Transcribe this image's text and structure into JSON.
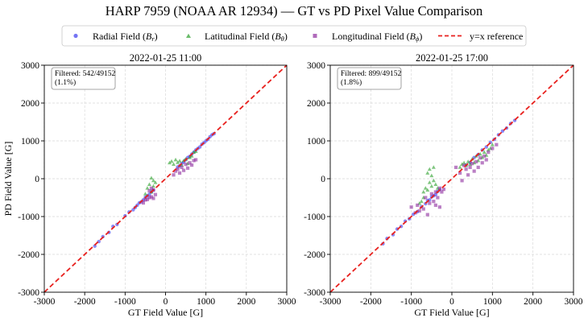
{
  "title": "HARP 7959 (NOAA AR 12934) — GT vs PD Pixel Value Comparison",
  "legend": {
    "placement": "top-center",
    "items": [
      {
        "label_main": "Radial Field (",
        "label_sym": "B",
        "label_sub": "r",
        "label_end": ")",
        "marker": "circle",
        "color": "#3b3bf0"
      },
      {
        "label_main": "Latitudinal Field (",
        "label_sym": "B",
        "label_sub": "θ",
        "label_end": ")",
        "marker": "triangle",
        "color": "#2ca02c"
      },
      {
        "label_main": "Longitudinal Field (",
        "label_sym": "B",
        "label_sub": "ϕ",
        "label_end": ")",
        "marker": "square",
        "color": "#8e2c9e"
      },
      {
        "label_main": "y=x reference",
        "label_sym": "",
        "label_sub": "",
        "label_end": "",
        "marker": "dashed-line",
        "color": "#e8211e"
      }
    ]
  },
  "chart_data": [
    {
      "type": "scatter",
      "title": "2022-01-25 11:00",
      "xlabel": "GT Field Value [G]",
      "ylabel": "PD Field Value [G]",
      "xlim": [
        -3000,
        3000
      ],
      "ylim": [
        -3000,
        3000
      ],
      "xticks": [
        "-3000",
        "-2000",
        "-1000",
        "0",
        "1000",
        "2000",
        "3000"
      ],
      "yticks": [
        "3000",
        "2000",
        "1000",
        "0",
        "-1000",
        "-2000",
        "-3000"
      ],
      "grid": true,
      "annotation": [
        "Filtered: 542/49152",
        "(1.1%)"
      ],
      "reference_line": {
        "name": "y=x reference",
        "points": [
          [
            -3000,
            -3000
          ],
          [
            3000,
            3000
          ]
        ]
      },
      "series": [
        {
          "name": "Radial Field (Br)",
          "marker": "circle",
          "points": [
            [
              -1750,
              -1780
            ],
            [
              -1650,
              -1660
            ],
            [
              -1550,
              -1530
            ],
            [
              -1400,
              -1420
            ],
            [
              -1300,
              -1260
            ],
            [
              -1200,
              -1210
            ],
            [
              -1000,
              -980
            ],
            [
              -900,
              -880
            ],
            [
              -800,
              -820
            ],
            [
              -750,
              -760
            ],
            [
              -700,
              -700
            ],
            [
              -650,
              -640
            ],
            [
              -600,
              -610
            ],
            [
              -550,
              -560
            ],
            [
              -500,
              -490
            ],
            [
              -450,
              -450
            ],
            [
              -400,
              -410
            ],
            [
              -350,
              -350
            ],
            [
              -300,
              -300
            ],
            [
              300,
              310
            ],
            [
              350,
              340
            ],
            [
              400,
              400
            ],
            [
              450,
              440
            ],
            [
              500,
              500
            ],
            [
              550,
              560
            ],
            [
              600,
              590
            ],
            [
              650,
              650
            ],
            [
              700,
              700
            ],
            [
              750,
              760
            ],
            [
              800,
              800
            ],
            [
              850,
              840
            ],
            [
              900,
              910
            ],
            [
              950,
              950
            ],
            [
              1000,
              1000
            ],
            [
              1050,
              1040
            ],
            [
              1100,
              1110
            ],
            [
              1150,
              1160
            ],
            [
              1200,
              1190
            ]
          ]
        },
        {
          "name": "Latitudinal Field (Bθ)",
          "marker": "triangle",
          "points": [
            [
              -350,
              20
            ],
            [
              -300,
              -50
            ],
            [
              -400,
              -150
            ],
            [
              -450,
              -250
            ],
            [
              -300,
              -200
            ],
            [
              -250,
              -100
            ],
            [
              -350,
              -350
            ],
            [
              -500,
              -400
            ],
            [
              100,
              420
            ],
            [
              150,
              460
            ],
            [
              200,
              380
            ],
            [
              250,
              500
            ],
            [
              300,
              430
            ],
            [
              350,
              470
            ],
            [
              400,
              360
            ],
            [
              450,
              480
            ],
            [
              500,
              520
            ],
            [
              550,
              400
            ],
            [
              600,
              560
            ],
            [
              650,
              600
            ],
            [
              700,
              700
            ],
            [
              750,
              720
            ]
          ]
        },
        {
          "name": "Longitudinal Field (Bϕ)",
          "marker": "square",
          "points": [
            [
              -450,
              -550
            ],
            [
              -400,
              -500
            ],
            [
              -350,
              -480
            ],
            [
              -300,
              -520
            ],
            [
              -250,
              -420
            ],
            [
              -300,
              -300
            ],
            [
              -350,
              -250
            ],
            [
              -400,
              -320
            ],
            [
              -500,
              -560
            ],
            [
              -550,
              -640
            ],
            [
              200,
              100
            ],
            [
              250,
              200
            ],
            [
              300,
              250
            ],
            [
              350,
              150
            ],
            [
              400,
              300
            ],
            [
              450,
              220
            ],
            [
              500,
              380
            ],
            [
              550,
              280
            ],
            [
              600,
              420
            ],
            [
              650,
              360
            ],
            [
              700,
              480
            ],
            [
              750,
              500
            ]
          ]
        }
      ]
    },
    {
      "type": "scatter",
      "title": "2022-01-25 17:00",
      "xlabel": "GT Field Value [G]",
      "ylabel": "",
      "xlim": [
        -3000,
        3000
      ],
      "ylim": [
        -3000,
        3000
      ],
      "xticks": [
        "-3000",
        "-2000",
        "-1000",
        "0",
        "1000",
        "2000",
        "3000"
      ],
      "yticks": [
        "3000",
        "2000",
        "1000",
        "0",
        "-1000",
        "-2000",
        "-3000"
      ],
      "grid": true,
      "annotation": [
        "Filtered: 899/49152",
        "(1.8%)"
      ],
      "reference_line": {
        "name": "y=x reference",
        "points": [
          [
            -3000,
            -3000
          ],
          [
            3000,
            3000
          ]
        ]
      },
      "series": [
        {
          "name": "Radial Field (Br)",
          "marker": "circle",
          "points": [
            [
              -1700,
              -1720
            ],
            [
              -1600,
              -1580
            ],
            [
              -1450,
              -1480
            ],
            [
              -1350,
              -1330
            ],
            [
              -1250,
              -1260
            ],
            [
              -1150,
              -1120
            ],
            [
              -1050,
              -1060
            ],
            [
              -950,
              -940
            ],
            [
              -850,
              -870
            ],
            [
              -750,
              -740
            ],
            [
              -650,
              -660
            ],
            [
              -600,
              -580
            ],
            [
              -550,
              -560
            ],
            [
              -500,
              -480
            ],
            [
              -450,
              -450
            ],
            [
              -400,
              -420
            ],
            [
              -350,
              -340
            ],
            [
              -300,
              -290
            ],
            [
              350,
              360
            ],
            [
              450,
              430
            ],
            [
              550,
              560
            ],
            [
              650,
              640
            ],
            [
              750,
              760
            ],
            [
              850,
              840
            ],
            [
              950,
              960
            ],
            [
              1050,
              1040
            ],
            [
              1150,
              1160
            ],
            [
              1250,
              1260
            ],
            [
              1350,
              1340
            ],
            [
              1450,
              1460
            ],
            [
              1550,
              1540
            ]
          ]
        },
        {
          "name": "Latitudinal Field (Bθ)",
          "marker": "triangle",
          "points": [
            [
              -700,
              -350
            ],
            [
              -650,
              -250
            ],
            [
              -600,
              -300
            ],
            [
              -550,
              -100
            ],
            [
              -500,
              -200
            ],
            [
              -450,
              -50
            ],
            [
              -400,
              -150
            ],
            [
              -350,
              -250
            ],
            [
              -600,
              150
            ],
            [
              -550,
              250
            ],
            [
              -500,
              80
            ],
            [
              -450,
              300
            ],
            [
              -700,
              -500
            ],
            [
              -750,
              -600
            ],
            [
              -800,
              -650
            ],
            [
              200,
              300
            ],
            [
              250,
              380
            ],
            [
              300,
              420
            ],
            [
              350,
              350
            ],
            [
              400,
              450
            ],
            [
              450,
              380
            ],
            [
              500,
              520
            ],
            [
              550,
              420
            ],
            [
              600,
              600
            ],
            [
              650,
              480
            ],
            [
              700,
              650
            ],
            [
              750,
              560
            ],
            [
              800,
              700
            ],
            [
              850,
              620
            ],
            [
              900,
              760
            ],
            [
              950,
              800
            ],
            [
              1000,
              900
            ]
          ]
        },
        {
          "name": "Longitudinal Field (Bϕ)",
          "marker": "square",
          "points": [
            [
              -1000,
              -750
            ],
            [
              -900,
              -900
            ],
            [
              -850,
              -700
            ],
            [
              -800,
              -850
            ],
            [
              -700,
              -800
            ],
            [
              -650,
              -500
            ],
            [
              -600,
              -950
            ],
            [
              -550,
              -650
            ],
            [
              -500,
              -400
            ],
            [
              -450,
              -600
            ],
            [
              -400,
              -350
            ],
            [
              -350,
              -500
            ],
            [
              -300,
              -250
            ],
            [
              -250,
              -350
            ],
            [
              -400,
              -700
            ],
            [
              -300,
              -750
            ],
            [
              -200,
              -280
            ],
            [
              100,
              300
            ],
            [
              200,
              150
            ],
            [
              250,
              -50
            ],
            [
              300,
              350
            ],
            [
              350,
              250
            ],
            [
              400,
              100
            ],
            [
              450,
              300
            ],
            [
              500,
              400
            ],
            [
              550,
              200
            ],
            [
              600,
              450
            ],
            [
              650,
              300
            ],
            [
              700,
              550
            ],
            [
              750,
              420
            ],
            [
              800,
              600
            ],
            [
              850,
              500
            ],
            [
              900,
              700
            ],
            [
              1000,
              800
            ],
            [
              1100,
              900
            ]
          ]
        }
      ]
    }
  ]
}
